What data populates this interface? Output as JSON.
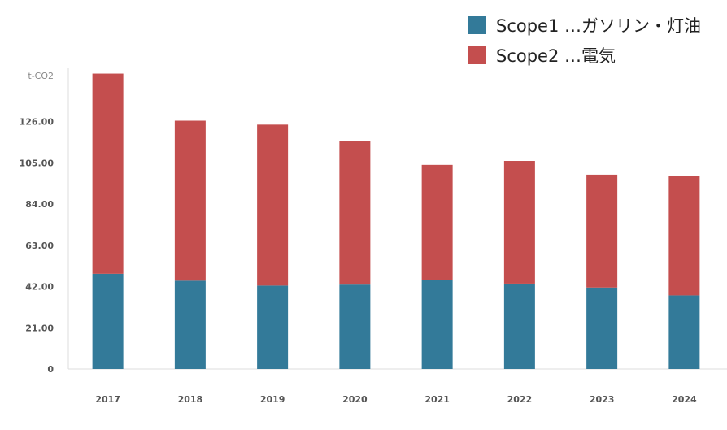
{
  "chart_data": {
    "type": "bar",
    "stacked": true,
    "ylabel": "t-CO2",
    "yticks": [
      "0",
      "21.00",
      "42.00",
      "63.00",
      "84.00",
      "105.00",
      "126.00"
    ],
    "ylim": [
      0,
      151
    ],
    "categories": [
      "2017",
      "2018",
      "2019",
      "2020",
      "2021",
      "2022",
      "2023",
      "2024"
    ],
    "series": [
      {
        "name": "Scope1 …ガソリン・灯油",
        "color": "#337a99",
        "values": [
          48.5,
          45.0,
          42.5,
          43.0,
          45.5,
          43.5,
          41.5,
          37.5
        ]
      },
      {
        "name": "Scope2 …電気",
        "color": "#c44e4e",
        "values": [
          102.0,
          81.5,
          82.0,
          73.0,
          58.5,
          62.5,
          57.5,
          61.0
        ]
      }
    ],
    "legend_position": "top-right",
    "grid": false
  }
}
